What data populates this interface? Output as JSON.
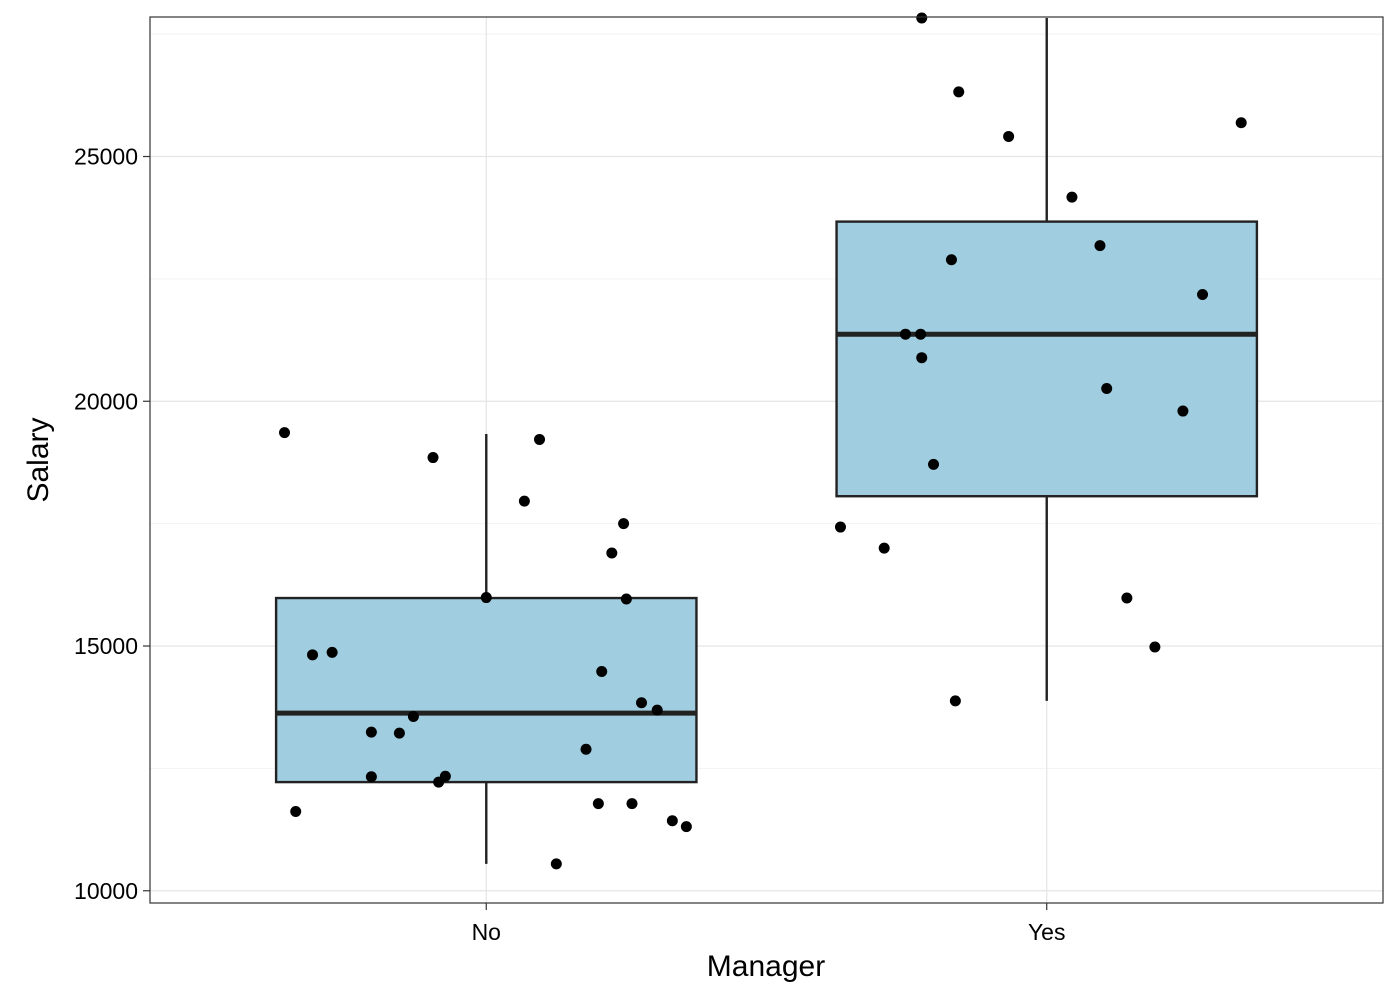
{
  "chart_data": {
    "type": "boxplot",
    "xlabel": "Manager",
    "ylabel": "Salary",
    "categories": [
      "No",
      "Yes"
    ],
    "ylim": [
      9750,
      27850
    ],
    "yticks": [
      10000,
      15000,
      20000,
      25000
    ],
    "ytick_labels": [
      "10000",
      "15000",
      "20000",
      "25000"
    ],
    "grid": true,
    "box_fill": "#a0cee0",
    "box_stroke": "#222222",
    "point_color": "#000000",
    "boxes": [
      {
        "category": "No",
        "whisker_low": 10550,
        "q1": 12220,
        "median": 13630,
        "q3": 15980,
        "whisker_high": 19330
      },
      {
        "category": "Yes",
        "whisker_low": 13880,
        "q1": 18060,
        "median": 21370,
        "q3": 23670,
        "whisker_high": 27830
      }
    ],
    "points": [
      {
        "category": "No",
        "jitter": -0.36,
        "y": 19360
      },
      {
        "category": "No",
        "jitter": -0.34,
        "y": 11620
      },
      {
        "category": "No",
        "jitter": -0.31,
        "y": 14820
      },
      {
        "category": "No",
        "jitter": -0.275,
        "y": 14870
      },
      {
        "category": "No",
        "jitter": -0.205,
        "y": 13240
      },
      {
        "category": "No",
        "jitter": -0.205,
        "y": 12330
      },
      {
        "category": "No",
        "jitter": -0.155,
        "y": 13220
      },
      {
        "category": "No",
        "jitter": -0.13,
        "y": 13560
      },
      {
        "category": "No",
        "jitter": -0.095,
        "y": 18850
      },
      {
        "category": "No",
        "jitter": -0.085,
        "y": 12220
      },
      {
        "category": "No",
        "jitter": -0.073,
        "y": 12340
      },
      {
        "category": "No",
        "jitter": 0.0,
        "y": 15990
      },
      {
        "category": "No",
        "jitter": 0.068,
        "y": 17960
      },
      {
        "category": "No",
        "jitter": 0.095,
        "y": 19220
      },
      {
        "category": "No",
        "jitter": 0.125,
        "y": 10550
      },
      {
        "category": "No",
        "jitter": 0.178,
        "y": 12890
      },
      {
        "category": "No",
        "jitter": 0.2,
        "y": 11780
      },
      {
        "category": "No",
        "jitter": 0.206,
        "y": 14480
      },
      {
        "category": "No",
        "jitter": 0.224,
        "y": 16900
      },
      {
        "category": "No",
        "jitter": 0.245,
        "y": 17500
      },
      {
        "category": "No",
        "jitter": 0.25,
        "y": 15960
      },
      {
        "category": "No",
        "jitter": 0.26,
        "y": 11780
      },
      {
        "category": "No",
        "jitter": 0.277,
        "y": 13840
      },
      {
        "category": "No",
        "jitter": 0.305,
        "y": 13690
      },
      {
        "category": "No",
        "jitter": 0.332,
        "y": 11430
      },
      {
        "category": "No",
        "jitter": 0.357,
        "y": 11310
      },
      {
        "category": "Yes",
        "jitter": -0.368,
        "y": 17430
      },
      {
        "category": "Yes",
        "jitter": -0.29,
        "y": 17000
      },
      {
        "category": "Yes",
        "jitter": -0.252,
        "y": 21370
      },
      {
        "category": "Yes",
        "jitter": -0.225,
        "y": 21370
      },
      {
        "category": "Yes",
        "jitter": -0.223,
        "y": 27830
      },
      {
        "category": "Yes",
        "jitter": -0.223,
        "y": 20890
      },
      {
        "category": "Yes",
        "jitter": -0.202,
        "y": 18710
      },
      {
        "category": "Yes",
        "jitter": -0.17,
        "y": 22890
      },
      {
        "category": "Yes",
        "jitter": -0.163,
        "y": 13880
      },
      {
        "category": "Yes",
        "jitter": -0.157,
        "y": 26320
      },
      {
        "category": "Yes",
        "jitter": -0.068,
        "y": 25410
      },
      {
        "category": "Yes",
        "jitter": 0.045,
        "y": 24170
      },
      {
        "category": "Yes",
        "jitter": 0.095,
        "y": 23180
      },
      {
        "category": "Yes",
        "jitter": 0.107,
        "y": 20260
      },
      {
        "category": "Yes",
        "jitter": 0.143,
        "y": 15980
      },
      {
        "category": "Yes",
        "jitter": 0.193,
        "y": 14980
      },
      {
        "category": "Yes",
        "jitter": 0.243,
        "y": 19800
      },
      {
        "category": "Yes",
        "jitter": 0.278,
        "y": 22180
      },
      {
        "category": "Yes",
        "jitter": 0.347,
        "y": 25690
      }
    ]
  }
}
